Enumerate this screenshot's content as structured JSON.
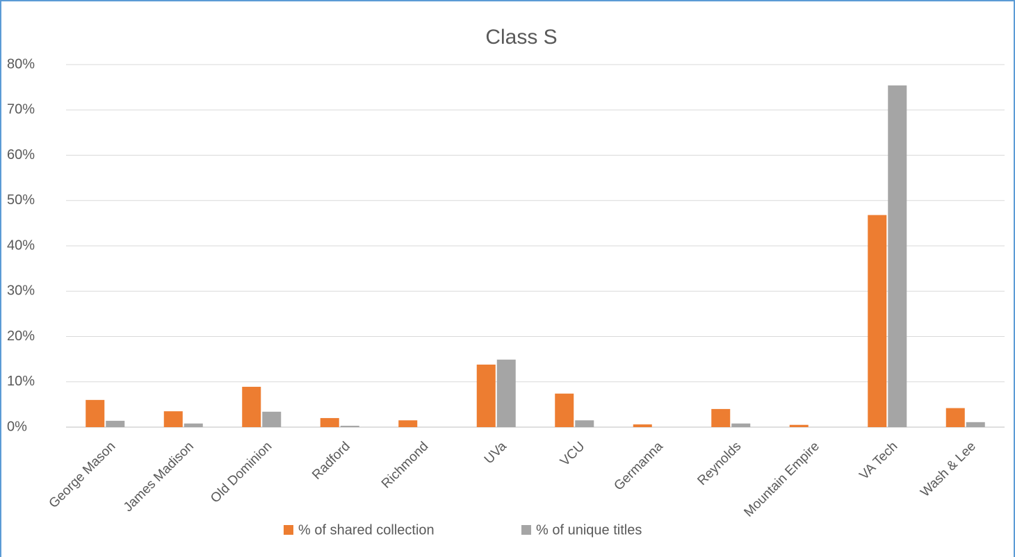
{
  "chart_data": {
    "type": "bar",
    "title": "Class S",
    "categories": [
      "George Mason",
      "James Madison",
      "Old Dominion",
      "Radford",
      "Richmond",
      "UVa",
      "VCU",
      "Germanna",
      "Reynolds",
      "Mountain Empire",
      "VA Tech",
      "Wash & Lee"
    ],
    "series": [
      {
        "name": "% of shared collection",
        "color": "#ed7d31",
        "values": [
          6.0,
          3.5,
          8.9,
          2.0,
          1.5,
          13.8,
          7.4,
          0.6,
          4.0,
          0.5,
          46.8,
          4.2
        ]
      },
      {
        "name": "% of unique titles",
        "color": "#a5a5a5",
        "values": [
          1.4,
          0.8,
          3.4,
          0.3,
          0,
          14.9,
          1.5,
          0,
          0.8,
          0,
          75.4,
          1.1
        ]
      }
    ],
    "ylim": [
      0,
      80
    ],
    "yticks": [
      {
        "value": 0,
        "label": "0%"
      },
      {
        "value": 10,
        "label": "10%"
      },
      {
        "value": 20,
        "label": "20%"
      },
      {
        "value": 30,
        "label": "30%"
      },
      {
        "value": 40,
        "label": "40%"
      },
      {
        "value": 50,
        "label": "50%"
      },
      {
        "value": 60,
        "label": "60%"
      },
      {
        "value": 70,
        "label": "70%"
      },
      {
        "value": 80,
        "label": "80%"
      }
    ],
    "grid": true,
    "legend": "bottom"
  }
}
